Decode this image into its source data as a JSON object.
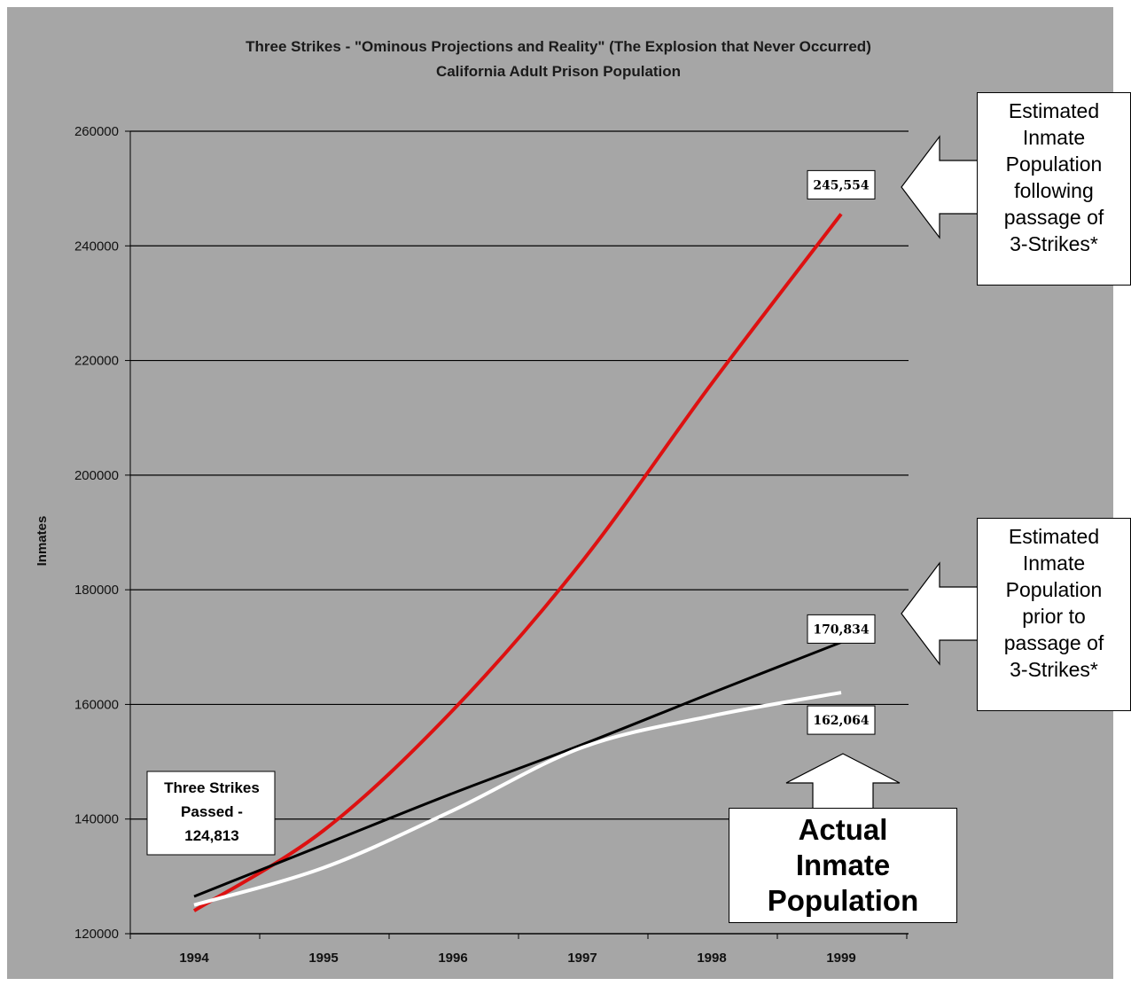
{
  "chart_data": {
    "type": "line",
    "title": "Three Strikes -  \"Ominous Projections and Reality\" (The Explosion that Never Occurred)",
    "subtitle": "California Adult Prison Population",
    "xlabel": "",
    "ylabel": "Inmates",
    "ylim": [
      120000,
      260000
    ],
    "yticks": [
      120000,
      140000,
      160000,
      180000,
      200000,
      220000,
      240000,
      260000
    ],
    "x": [
      "1994",
      "1995",
      "1996",
      "1997",
      "1998",
      "1999"
    ],
    "grid": true,
    "legend": "none",
    "series": [
      {
        "color": "#dd1111",
        "values": [
          124000,
          138000,
          159000,
          185000,
          216000,
          245554
        ]
      },
      {
        "color": "#000000",
        "values": [
          126500,
          135500,
          144500,
          153000,
          162000,
          170834
        ]
      },
      {
        "color": "#ffffff",
        "values": [
          125000,
          131500,
          141500,
          152500,
          158000,
          162064
        ]
      }
    ],
    "data_labels": [
      {
        "text": "245,554",
        "x": "1999",
        "y": 245554
      },
      {
        "text": "170,834",
        "x": "1999",
        "y": 170834
      },
      {
        "text": "162,064",
        "x": "1999",
        "y": 162064
      }
    ],
    "annotations": {
      "three_strikes": [
        "Three Strikes",
        "Passed -",
        "124,813"
      ],
      "estimated_after": [
        "Estimated",
        "Inmate",
        "Population",
        "following",
        "passage of",
        "3-Strikes*"
      ],
      "estimated_prior": [
        "Estimated",
        "Inmate",
        "Population",
        "prior to",
        "passage of",
        "3-Strikes*"
      ],
      "actual": [
        "Actual",
        "Inmate",
        "Population"
      ]
    }
  },
  "colors": {
    "plot_background": "#a6a6a6",
    "gridline": "#000000"
  }
}
